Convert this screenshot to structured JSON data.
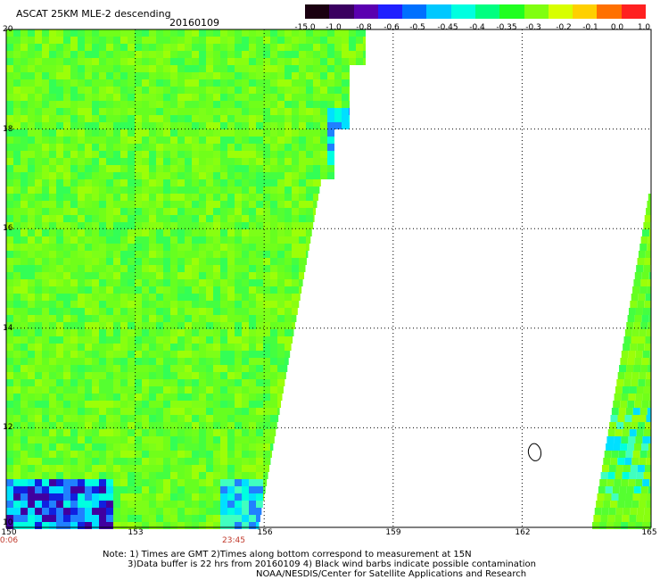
{
  "header": {
    "title": "ASCAT 25KM MLE-2 descending",
    "date": "20160109"
  },
  "colorbar": {
    "labels": [
      "-15.0",
      "-1.0",
      "-0.8",
      "-0.6",
      "-0.5",
      "-0.45",
      "-0.4",
      "-0.35",
      "-0.3",
      "-0.2",
      "-0.1",
      "0.0",
      "1.0"
    ],
    "colors": [
      "#1a0010",
      "#3a0060",
      "#5a00b0",
      "#2020ff",
      "#0070ff",
      "#00c8ff",
      "#00ffe0",
      "#00ff80",
      "#20ff20",
      "#80ff10",
      "#d8ff00",
      "#ffd000",
      "#ff7000",
      "#ff2020"
    ]
  },
  "map": {
    "lat_labels": [
      "20",
      "18",
      "16",
      "14",
      "12",
      "10"
    ],
    "lon_labels": [
      "150",
      "153",
      "156",
      "159",
      "162",
      "165"
    ],
    "lat_range": [
      10,
      20
    ],
    "lon_range": [
      150,
      165
    ],
    "times": [
      "0:06",
      "23:45"
    ]
  },
  "notes": {
    "line1": "Note: 1) Times are GMT 2)Times along bottom correspond to measurement at 15N",
    "line2": "3)Data buffer is 22 hrs from 20160109 4) Black wind barbs indicate possible contamination",
    "line3": "NOAA/NESDIS/Center for Satellite Applications and Research"
  }
}
